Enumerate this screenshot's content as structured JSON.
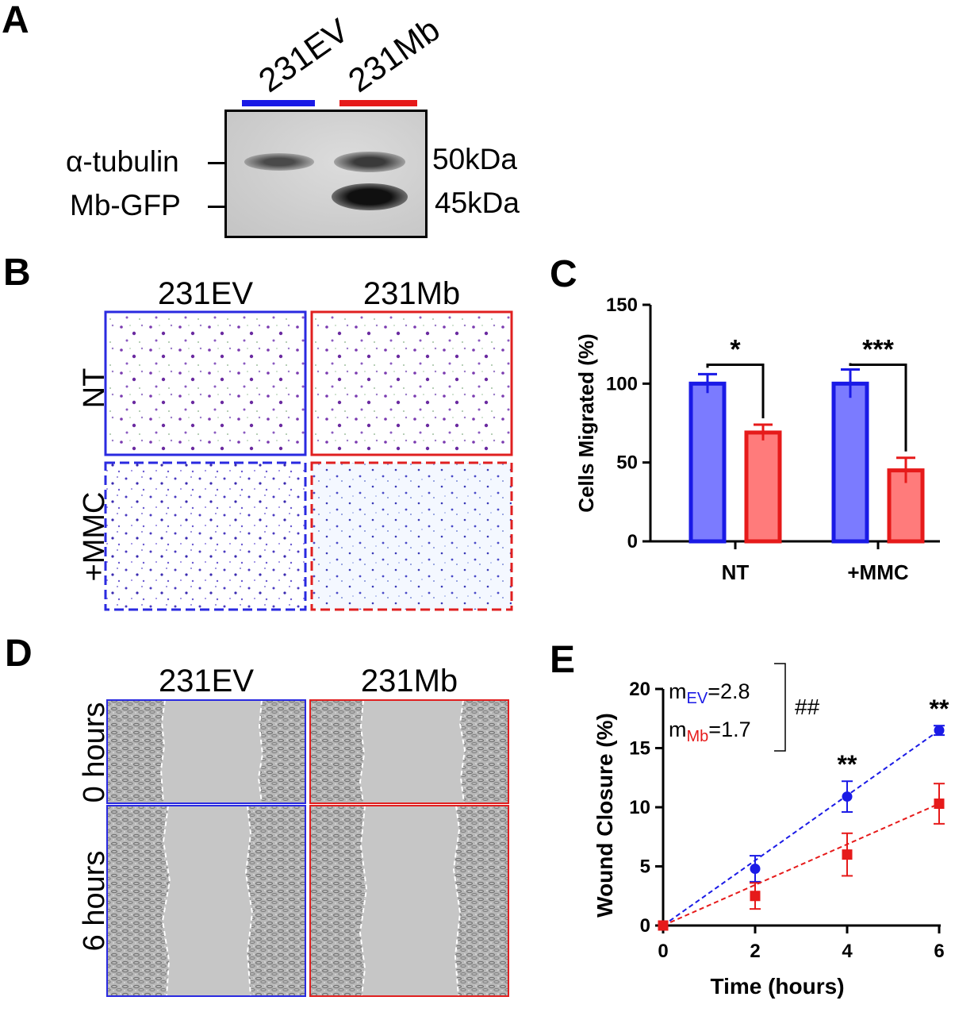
{
  "panels": {
    "a": "A",
    "b": "B",
    "c": "C",
    "d": "D",
    "e": "E"
  },
  "colors": {
    "ev": "#1a1ae6",
    "mb": "#e61a1a",
    "ev_fill": "#7b7bff",
    "mb_fill": "#ff7b7b"
  },
  "western": {
    "lanes": [
      "231EV",
      "231Mb"
    ],
    "bands": [
      "α-tubulin",
      "Mb-GFP"
    ],
    "sizes": [
      "50kDa",
      "45kDa"
    ]
  },
  "transwell": {
    "columns": [
      "231EV",
      "231Mb"
    ],
    "rows": [
      "NT",
      "+MMC"
    ]
  },
  "wound_images": {
    "columns": [
      "231EV",
      "231Mb"
    ],
    "rows": [
      "0 hours",
      "6 hours"
    ]
  },
  "chart_data": [
    {
      "id": "C",
      "type": "bar",
      "categories": [
        "NT",
        "+MMC"
      ],
      "series": [
        {
          "name": "231EV",
          "values": [
            100,
            100
          ],
          "errors": [
            6,
            9
          ]
        },
        {
          "name": "231Mb",
          "values": [
            69,
            45
          ],
          "errors": [
            5,
            8
          ]
        }
      ],
      "significance": [
        "*",
        "***"
      ],
      "title": "",
      "xlabel": "",
      "ylabel": "Cells Migrated (%)",
      "ylim": [
        0,
        150
      ],
      "yticks": [
        "0",
        "50",
        "100",
        "150"
      ]
    },
    {
      "id": "E",
      "type": "scatter",
      "x": [
        0,
        2,
        4,
        6
      ],
      "series": [
        {
          "name": "231EV",
          "marker": "circle",
          "values": [
            0,
            4.8,
            10.9,
            16.5
          ],
          "errors": [
            0,
            1.1,
            1.3,
            0.4
          ],
          "slope_text": "=2.8",
          "slope_label": "m",
          "slope_sub": "EV"
        },
        {
          "name": "231Mb",
          "marker": "square",
          "values": [
            0,
            2.5,
            6.0,
            10.3
          ],
          "errors": [
            0,
            1.1,
            1.8,
            1.7
          ],
          "slope_text": "=1.7",
          "slope_label": "m",
          "slope_sub": "Mb"
        }
      ],
      "fit_lines": true,
      "significance": [
        "**",
        "**"
      ],
      "slope_significance": "##",
      "xlabel": "Time (hours)",
      "ylabel": "Wound Closure (%)",
      "xlim": [
        0,
        6
      ],
      "ylim": [
        0,
        20
      ],
      "xticks": [
        "0",
        "2",
        "4",
        "6"
      ],
      "yticks": [
        "0",
        "5",
        "10",
        "15",
        "20"
      ]
    }
  ]
}
